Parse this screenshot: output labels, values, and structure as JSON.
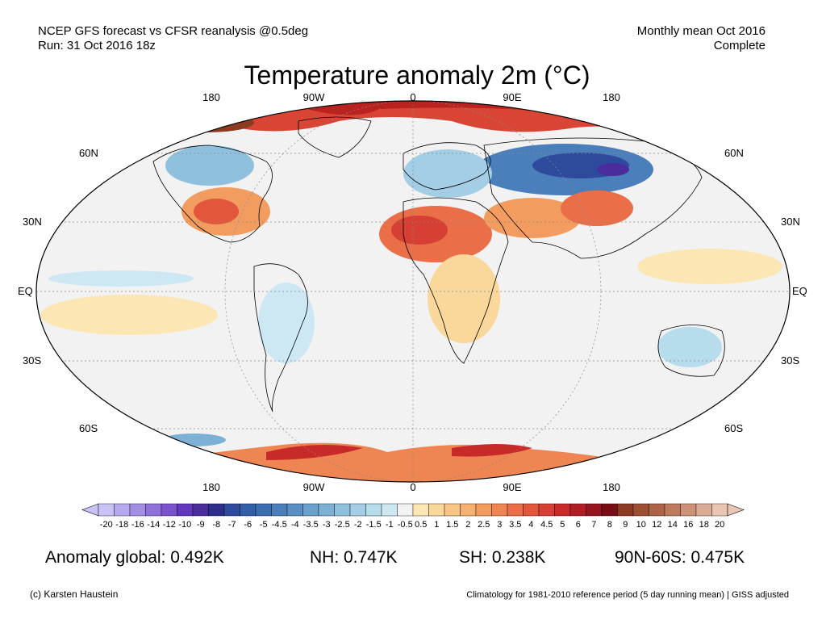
{
  "header": {
    "line1_left": "NCEP GFS forecast vs CFSR reanalysis @0.5deg",
    "line2_left": "Run: 31 Oct 2016 18z",
    "line1_right": "Monthly mean Oct 2016",
    "line2_right": "Complete"
  },
  "title": "Temperature anomaly 2m (°C)",
  "map": {
    "lon_labels": [
      "180",
      "90W",
      "0",
      "90E",
      "180"
    ],
    "lat_labels_left": [
      "60N",
      "30N",
      "EQ",
      "30S",
      "60S"
    ],
    "lat_labels_right": [
      "60N",
      "30N",
      "EQ",
      "30S",
      "60S"
    ],
    "ocean_color": "#f2f2f2",
    "land_color": "#f4f4f4"
  },
  "colorbar": {
    "ticks": [
      "-20",
      "-18",
      "-16",
      "-14",
      "-12",
      "-10",
      "-9",
      "-8",
      "-7",
      "-6",
      "-5",
      "-4.5",
      "-4",
      "-3.5",
      "-3",
      "-2.5",
      "-2",
      "-1.5",
      "-1",
      "-0.5",
      "0.5",
      "1",
      "1.5",
      "2",
      "2.5",
      "3",
      "3.5",
      "4",
      "4.5",
      "5",
      "6",
      "7",
      "8",
      "9",
      "10",
      "12",
      "14",
      "16",
      "18",
      "20"
    ],
    "colors": [
      "#c9c2f5",
      "#b6a9ee",
      "#a38ee6",
      "#8f71dc",
      "#7a52cf",
      "#6236be",
      "#4a2c9d",
      "#2c2f8a",
      "#2d4a9c",
      "#325ea8",
      "#3b6db1",
      "#4a7fbb",
      "#5a8fc3",
      "#6aa0cc",
      "#7cb1d5",
      "#8fc0dd",
      "#a3cee5",
      "#b7dcec",
      "#cde8f3",
      "#f2f2f2",
      "#fbe6b4",
      "#fad79a",
      "#f8c584",
      "#f6b070",
      "#f39c60",
      "#ef8553",
      "#ea6e47",
      "#e2573c",
      "#d63f33",
      "#c82a2a",
      "#b11c25",
      "#961320",
      "#7a0c16",
      "#8c3a22",
      "#9c4e32",
      "#ad6346",
      "#be7a5c",
      "#cd9177",
      "#dcab95",
      "#e9c5b3"
    ]
  },
  "stats": {
    "global": "Anomaly global: 0.492K",
    "nh": "NH: 0.747K",
    "sh": "SH: 0.238K",
    "arctic": "90N-60S: 0.475K"
  },
  "footer": {
    "left": "(c) Karsten Haustein",
    "right": "Climatology for 1981-2010 reference period (5 day running mean) | GISS adjusted"
  }
}
